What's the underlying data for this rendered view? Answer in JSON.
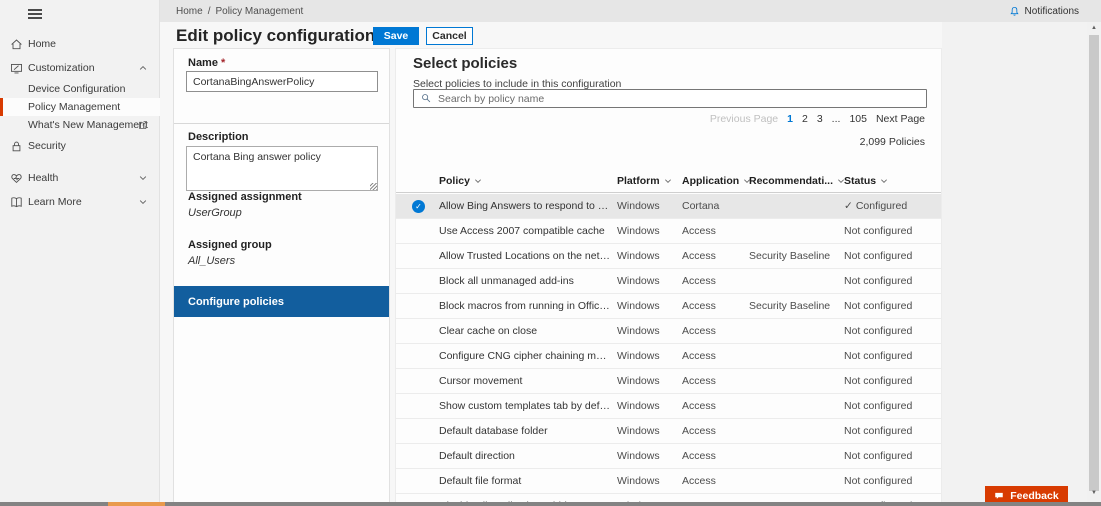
{
  "topbar": {
    "breadcrumb": [
      "Home",
      "Policy Management"
    ],
    "separator": "/",
    "notifications_label": "Notifications"
  },
  "sidebar": {
    "items": [
      {
        "label": "Home",
        "icon": "home"
      },
      {
        "label": "Customization",
        "icon": "customization",
        "chevron": "up"
      },
      {
        "label": "Device Configuration",
        "child": true
      },
      {
        "label": "Policy Management",
        "child": true,
        "selected": true
      },
      {
        "label": "What's New Management",
        "child": true,
        "external": true
      },
      {
        "label": "Security",
        "icon": "lock"
      },
      {
        "label": "Health",
        "icon": "heart",
        "chevron": "down",
        "spaced": true
      },
      {
        "label": "Learn More",
        "icon": "book",
        "chevron": "down"
      }
    ]
  },
  "header": {
    "title": "Edit policy configuration",
    "save_label": "Save",
    "cancel_label": "Cancel"
  },
  "form": {
    "name_label": "Name",
    "required_mark": "*",
    "name_value": "CortanaBingAnswerPolicy",
    "description_label": "Description",
    "description_value": "Cortana Bing answer policy",
    "assigned_assignment_label": "Assigned assignment",
    "assigned_assignment_value": "UserGroup",
    "assigned_group_label": "Assigned group",
    "assigned_group_value": "All_Users",
    "configure_policies_label": "Configure policies"
  },
  "policies": {
    "title": "Select policies",
    "subtitle": "Select policies to include in this configuration",
    "search_placeholder": "Search by policy name",
    "pagination": {
      "previous": "Previous Page",
      "pages": [
        "1",
        "2",
        "3",
        "...",
        "105"
      ],
      "current": "1",
      "next": "Next Page"
    },
    "count_label": "2,099 Policies",
    "columns": [
      "Policy",
      "Platform",
      "Application",
      "Recommendati...",
      "Status"
    ],
    "rows": [
      {
        "policy": "Allow Bing Answers to respond to questions users as...",
        "platform": "Windows",
        "application": "Cortana",
        "recommendation": "",
        "status": "Configured",
        "selected": true
      },
      {
        "policy": "Use Access 2007 compatible cache",
        "platform": "Windows",
        "application": "Access",
        "recommendation": "",
        "status": "Not configured"
      },
      {
        "policy": "Allow Trusted Locations on the network",
        "platform": "Windows",
        "application": "Access",
        "recommendation": "Security Baseline",
        "status": "Not configured"
      },
      {
        "policy": "Block all unmanaged add-ins",
        "platform": "Windows",
        "application": "Access",
        "recommendation": "",
        "status": "Not configured"
      },
      {
        "policy": "Block macros from running in Office files from the Int...",
        "platform": "Windows",
        "application": "Access",
        "recommendation": "Security Baseline",
        "status": "Not configured"
      },
      {
        "policy": "Clear cache on close",
        "platform": "Windows",
        "application": "Access",
        "recommendation": "",
        "status": "Not configured"
      },
      {
        "policy": "Configure CNG cipher chaining mode",
        "platform": "Windows",
        "application": "Access",
        "recommendation": "",
        "status": "Not configured"
      },
      {
        "policy": "Cursor movement",
        "platform": "Windows",
        "application": "Access",
        "recommendation": "",
        "status": "Not configured"
      },
      {
        "policy": "Show custom templates tab by default in Access on t...",
        "platform": "Windows",
        "application": "Access",
        "recommendation": "",
        "status": "Not configured"
      },
      {
        "policy": "Default database folder",
        "platform": "Windows",
        "application": "Access",
        "recommendation": "",
        "status": "Not configured"
      },
      {
        "policy": "Default direction",
        "platform": "Windows",
        "application": "Access",
        "recommendation": "",
        "status": "Not configured"
      },
      {
        "policy": "Default file format",
        "platform": "Windows",
        "application": "Access",
        "recommendation": "",
        "status": "Not configured"
      },
      {
        "policy": "Disable all application add-ins",
        "platform": "Windows",
        "application": "Access",
        "recommendation": "",
        "status": "Not configured"
      }
    ]
  },
  "feedback_label": "Feedback",
  "colors": {
    "accent": "#0078d4",
    "configure_block": "#125e9e",
    "selected_indicator": "#d83b01",
    "feedback_button": "#d83b01",
    "sidebar_bg": "#f2f2f2",
    "topbar_bg": "#e6e6e6",
    "selected_row_bg": "#e7e7e7"
  }
}
